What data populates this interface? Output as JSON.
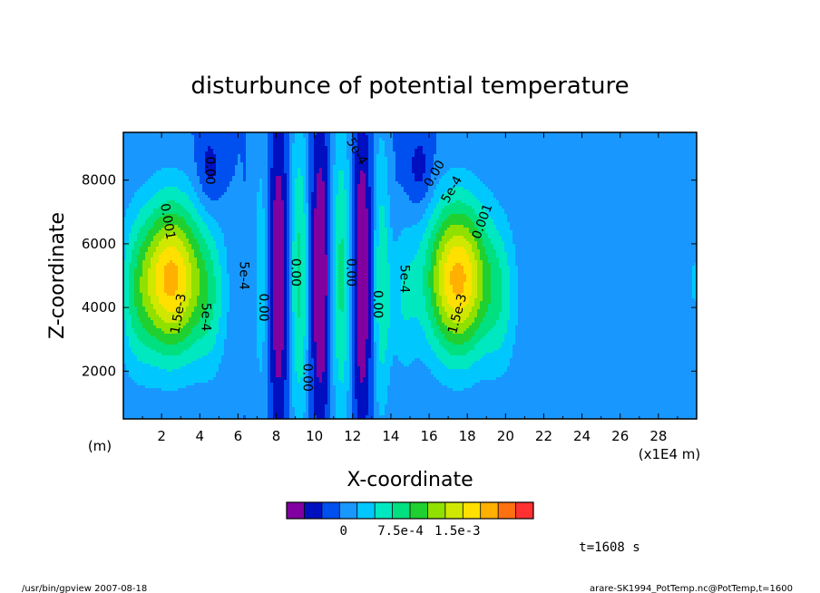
{
  "chart_data": {
    "type": "heatmap",
    "title": "disturbunce of potential temperature",
    "xlabel": "X-coordinate",
    "ylabel": "Z-coordinate",
    "x_unit_left": "(m)",
    "x_unit_right": "(x1E4 m)",
    "xlim": [
      0,
      30
    ],
    "ylim": [
      500,
      9500
    ],
    "x_ticks": [
      "2",
      "4",
      "6",
      "8",
      "10",
      "12",
      "14",
      "16",
      "18",
      "20",
      "22",
      "24",
      "26",
      "28"
    ],
    "y_ticks": [
      "2000",
      "4000",
      "6000",
      "8000"
    ],
    "features": [
      {
        "kind": "warm",
        "x": 2.5,
        "z": 4900,
        "amp": 0.0021,
        "sx": 1.7,
        "sz": 2400
      },
      {
        "kind": "warm",
        "x": 17.5,
        "z": 4900,
        "amp": 0.0021,
        "sx": 1.7,
        "sz": 2400
      },
      {
        "kind": "cold",
        "x": 4.5,
        "z": 8300,
        "amp": -0.0004,
        "sx": 0.7,
        "sz": 1300
      },
      {
        "kind": "cold",
        "x": 15.5,
        "z": 8300,
        "amp": -0.0004,
        "sx": 0.7,
        "sz": 1300
      },
      {
        "kind": "waves",
        "x_range": [
          7,
          14
        ],
        "amp": 0.0008
      }
    ],
    "contour_labels": [
      {
        "text": "0.00",
        "x": 4.5,
        "z": 8300,
        "rot": 90
      },
      {
        "text": "0.001",
        "x": 2.3,
        "z": 6700,
        "rot": 80
      },
      {
        "text": "1.5e-3",
        "x": 2.9,
        "z": 3800,
        "rot": -80
      },
      {
        "text": "5e-4",
        "x": 4.3,
        "z": 3700,
        "rot": 90
      },
      {
        "text": "5e-4",
        "x": 6.3,
        "z": 5000,
        "rot": 90
      },
      {
        "text": "0.00",
        "x": 7.3,
        "z": 4000,
        "rot": 90
      },
      {
        "text": "0.00",
        "x": 9.0,
        "z": 5100,
        "rot": 90
      },
      {
        "text": "0.00",
        "x": 11.9,
        "z": 5100,
        "rot": 90
      },
      {
        "text": "0.00",
        "x": 9.6,
        "z": 1800,
        "rot": 90
      },
      {
        "text": "0.00",
        "x": 13.3,
        "z": 4100,
        "rot": 90
      },
      {
        "text": "5e-4",
        "x": 14.7,
        "z": 4900,
        "rot": 90
      },
      {
        "text": "0.00",
        "x": 16.3,
        "z": 8200,
        "rot": -60
      },
      {
        "text": "5e-4",
        "x": 17.2,
        "z": 7700,
        "rot": -60
      },
      {
        "text": "0.001",
        "x": 18.8,
        "z": 6700,
        "rot": -70
      },
      {
        "text": "1.5e-3",
        "x": 17.5,
        "z": 3800,
        "rot": -75
      },
      {
        "text": "5e-4",
        "x": 12.2,
        "z": 8900,
        "rot": 60
      }
    ],
    "colorbar": {
      "colors": [
        "#8000a0",
        "#0010c0",
        "#0050f0",
        "#1898ff",
        "#00c8ff",
        "#00e8c0",
        "#00e080",
        "#20d030",
        "#90e000",
        "#d0e800",
        "#ffe000",
        "#ffb000",
        "#ff7010",
        "#ff3030"
      ],
      "levels": [
        -0.0005,
        -0.00025,
        0,
        0.00025,
        0.0005,
        0.00075,
        0.001,
        0.00125,
        0.0015,
        0.00175,
        0.002,
        0.00225
      ],
      "tick_labels": [
        "0",
        "7.5e-4",
        "1.5e-3"
      ],
      "tick_values": [
        0,
        0.00075,
        0.0015
      ]
    }
  },
  "time_label": "t=1608 s",
  "footer_left": "/usr/bin/gpview   2007-08-18",
  "footer_right": "arare-SK1994_PotTemp.nc@PotTemp,t=1600"
}
